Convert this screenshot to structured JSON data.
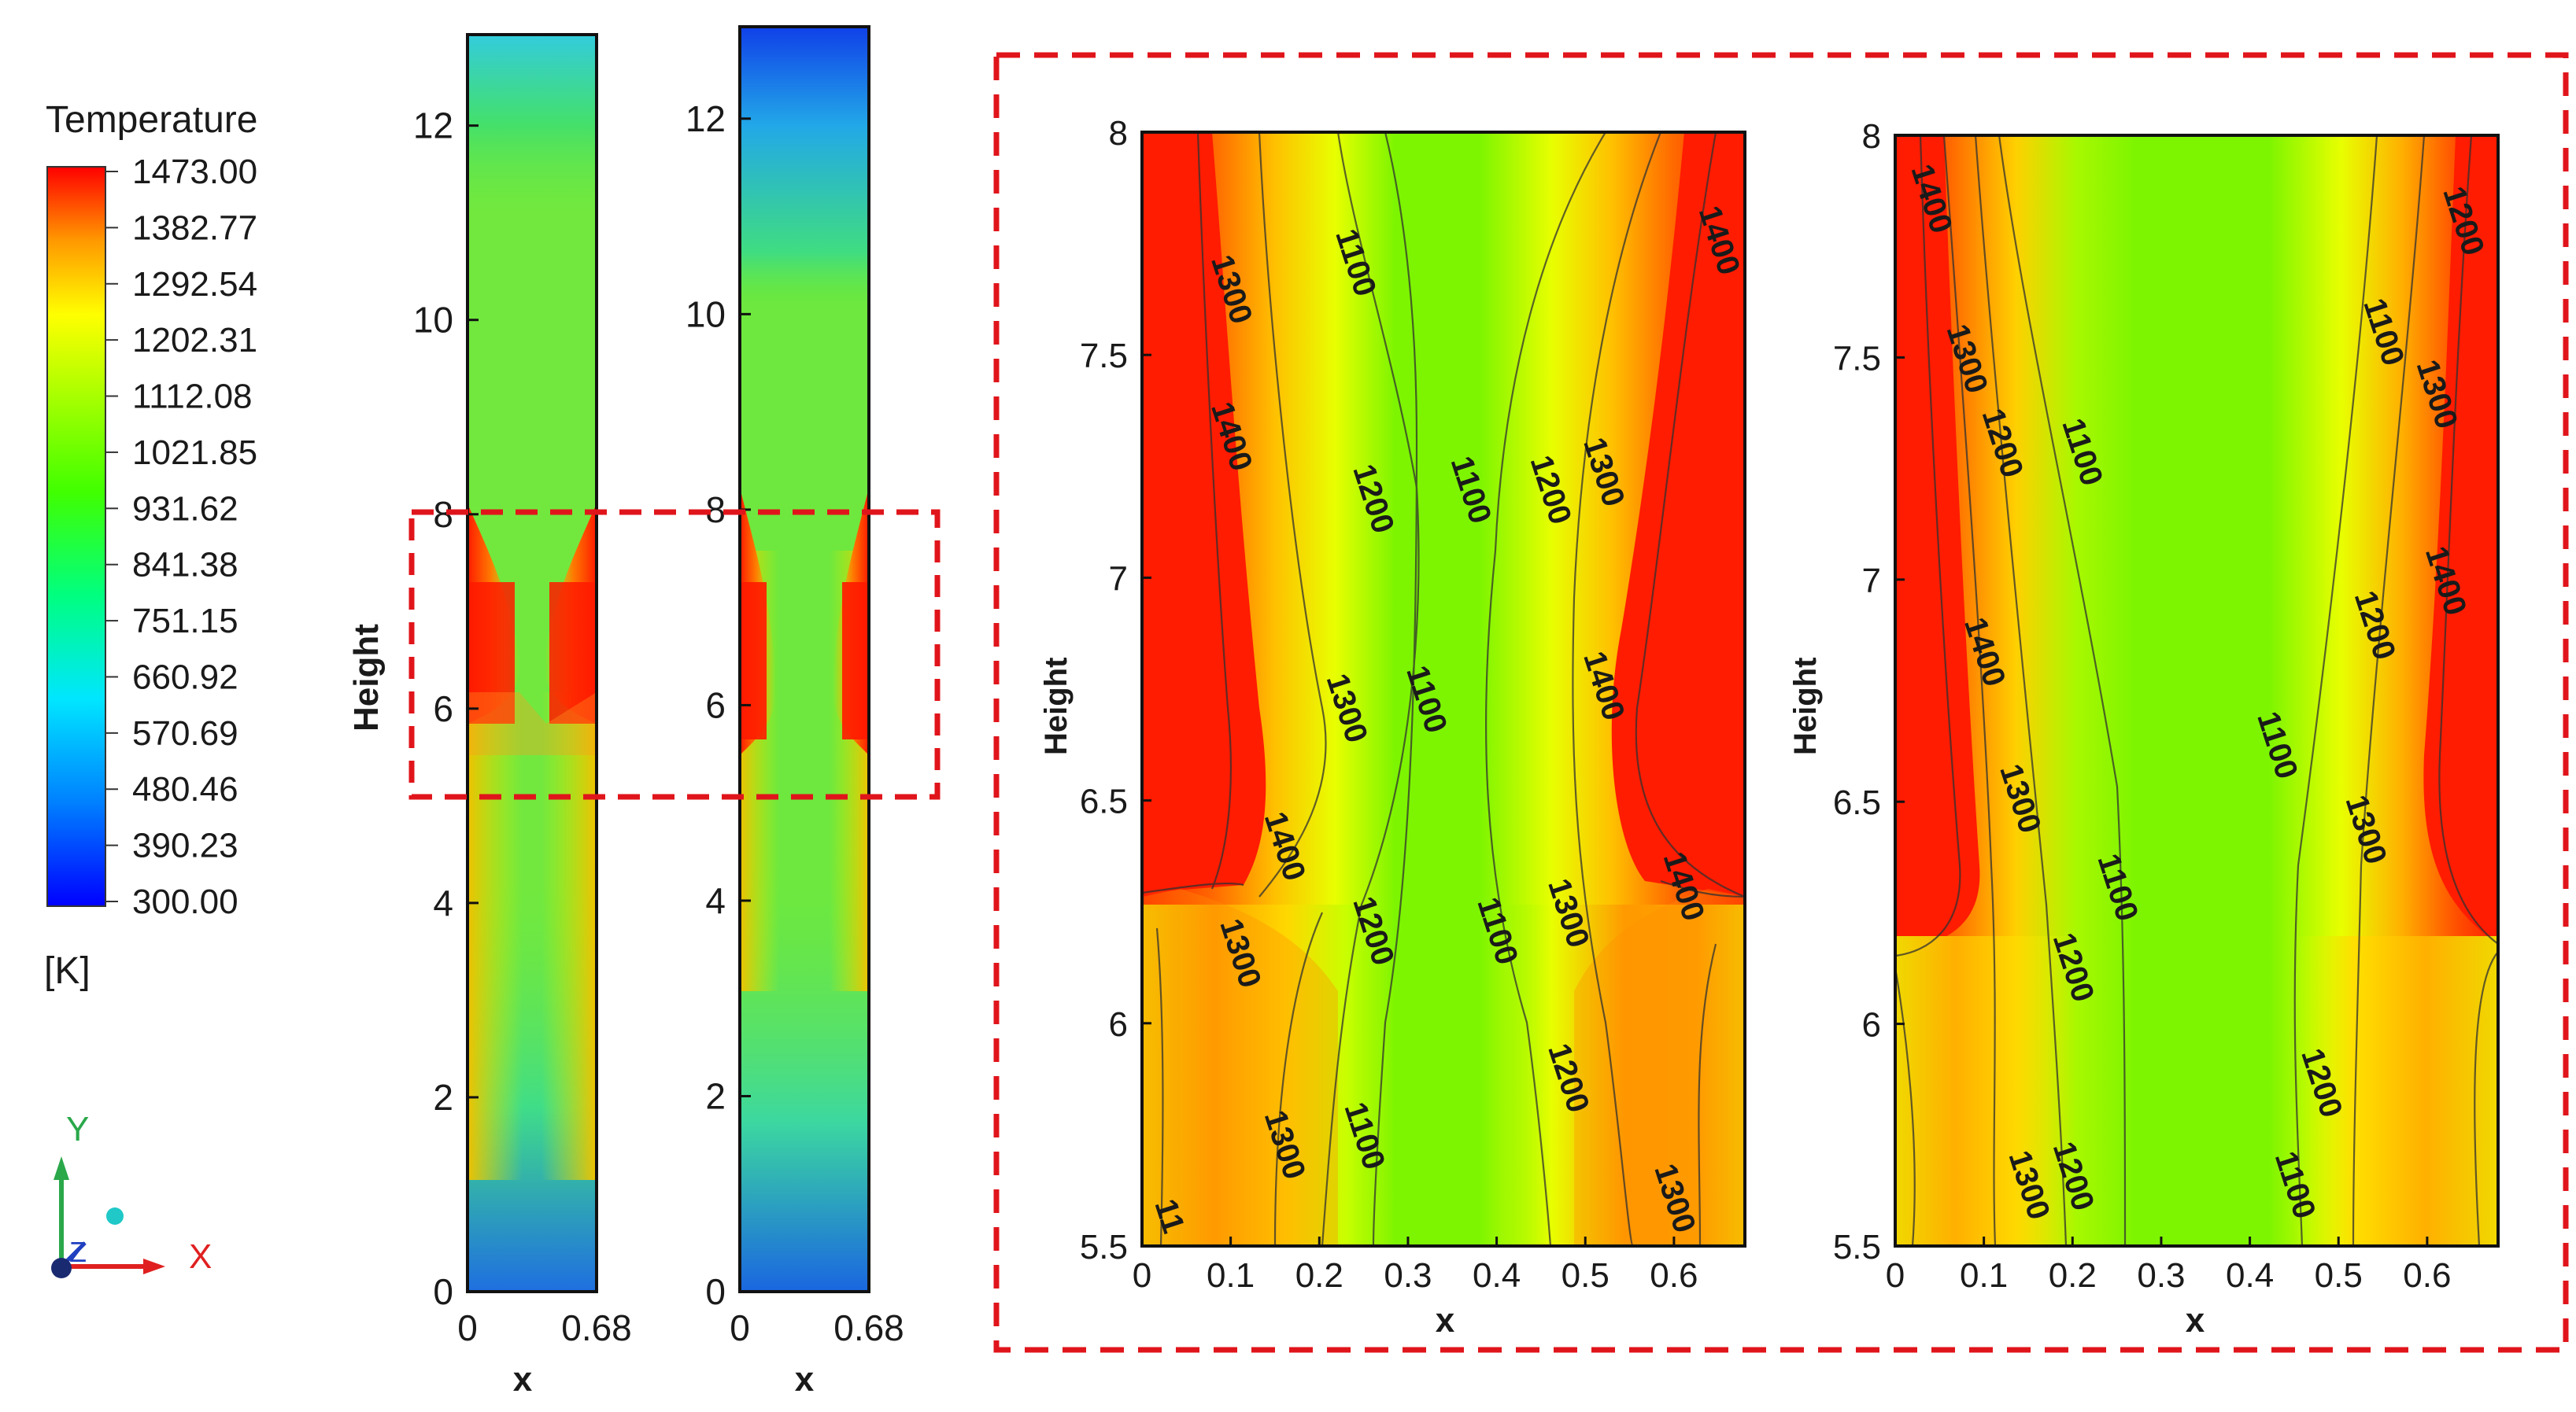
{
  "legend": {
    "title": "Temperature",
    "unit": "[K]",
    "min": 300.0,
    "max": 1473.0,
    "levels": [
      "1473.00",
      "1382.77",
      "1292.54",
      "1202.31",
      "1112.08",
      "1021.85",
      "931.62",
      "841.38",
      "751.15",
      "660.92",
      "570.69",
      "480.46",
      "390.23",
      "300.00"
    ],
    "colors": [
      "#0000ff",
      "#00bfff",
      "#00ffcc",
      "#00ff66",
      "#7cfc00",
      "#ffff00",
      "#ff9900",
      "#ff0000"
    ]
  },
  "triad": {
    "y": "Y",
    "z": "Z",
    "x": "X"
  },
  "chart_data": [
    {
      "type": "heatmap",
      "xlabel": "x",
      "ylabel": "Height",
      "xlim": [
        0,
        0.68
      ],
      "ylim": [
        0,
        13.6
      ],
      "xticks": [
        "0",
        "0.68"
      ],
      "yticks": [
        "0",
        "2",
        "4",
        "6",
        "8",
        "10",
        "12"
      ]
    },
    {
      "type": "heatmap",
      "xlabel": "x",
      "ylabel": "",
      "xlim": [
        0,
        0.68
      ],
      "ylim": [
        0,
        13.6
      ],
      "xticks": [
        "0",
        "0.68"
      ],
      "yticks": [
        "0",
        "2",
        "4",
        "6",
        "8",
        "10",
        "12"
      ]
    },
    {
      "type": "heatmap",
      "xlabel": "x",
      "ylabel": "Height",
      "xlim": [
        0,
        0.68
      ],
      "ylim": [
        5.5,
        8
      ],
      "xticks": [
        "0",
        "0.1",
        "0.2",
        "0.3",
        "0.4",
        "0.5",
        "0.6"
      ],
      "yticks": [
        "5.5",
        "6",
        "6.5",
        "7",
        "7.5",
        "8"
      ],
      "contour_labels": [
        {
          "text": "1300",
          "x": 0.09,
          "y": 7.64
        },
        {
          "text": "1100",
          "x": 0.23,
          "y": 7.7
        },
        {
          "text": "1400",
          "x": 0.64,
          "y": 7.75
        },
        {
          "text": "1400",
          "x": 0.09,
          "y": 7.31
        },
        {
          "text": "1200",
          "x": 0.25,
          "y": 7.17
        },
        {
          "text": "1100",
          "x": 0.36,
          "y": 7.19
        },
        {
          "text": "1200",
          "x": 0.45,
          "y": 7.19
        },
        {
          "text": "1300",
          "x": 0.51,
          "y": 7.23
        },
        {
          "text": "1300",
          "x": 0.22,
          "y": 6.7
        },
        {
          "text": "1100",
          "x": 0.31,
          "y": 6.72
        },
        {
          "text": "1400",
          "x": 0.51,
          "y": 6.75
        },
        {
          "text": "1400",
          "x": 0.15,
          "y": 6.39
        },
        {
          "text": "1400",
          "x": 0.6,
          "y": 6.3
        },
        {
          "text": "1300",
          "x": 0.1,
          "y": 6.15
        },
        {
          "text": "1200",
          "x": 0.25,
          "y": 6.2
        },
        {
          "text": "1100",
          "x": 0.39,
          "y": 6.2
        },
        {
          "text": "1300",
          "x": 0.47,
          "y": 6.24
        },
        {
          "text": "1200",
          "x": 0.47,
          "y": 5.87
        },
        {
          "text": "1300",
          "x": 0.15,
          "y": 5.72
        },
        {
          "text": "1100",
          "x": 0.24,
          "y": 5.74
        },
        {
          "text": "1300",
          "x": 0.59,
          "y": 5.6
        },
        {
          "text": "11",
          "x": 0.02,
          "y": 5.56
        }
      ]
    },
    {
      "type": "heatmap",
      "xlabel": "x",
      "ylabel": "Height",
      "xlim": [
        0,
        0.68
      ],
      "ylim": [
        5.5,
        8
      ],
      "xticks": [
        "0",
        "0.1",
        "0.2",
        "0.3",
        "0.4",
        "0.5",
        "0.6"
      ],
      "yticks": [
        "5.5",
        "6",
        "6.5",
        "7",
        "7.5",
        "8"
      ],
      "contour_labels": [
        {
          "text": "1400",
          "x": 0.03,
          "y": 7.85
        },
        {
          "text": "1200",
          "x": 0.63,
          "y": 7.8
        },
        {
          "text": "1300",
          "x": 0.07,
          "y": 7.49
        },
        {
          "text": "1100",
          "x": 0.54,
          "y": 7.55
        },
        {
          "text": "1200",
          "x": 0.11,
          "y": 7.3
        },
        {
          "text": "1100",
          "x": 0.2,
          "y": 7.28
        },
        {
          "text": "1300",
          "x": 0.6,
          "y": 7.41
        },
        {
          "text": "1400",
          "x": 0.61,
          "y": 6.99
        },
        {
          "text": "1400",
          "x": 0.09,
          "y": 6.83
        },
        {
          "text": "1200",
          "x": 0.53,
          "y": 6.89
        },
        {
          "text": "1100",
          "x": 0.42,
          "y": 6.62
        },
        {
          "text": "1300",
          "x": 0.13,
          "y": 6.5
        },
        {
          "text": "1300",
          "x": 0.52,
          "y": 6.43
        },
        {
          "text": "1100",
          "x": 0.24,
          "y": 6.3
        },
        {
          "text": "1200",
          "x": 0.19,
          "y": 6.12
        },
        {
          "text": "1200",
          "x": 0.47,
          "y": 5.86
        },
        {
          "text": "1100",
          "x": 0.44,
          "y": 5.63
        },
        {
          "text": "1300",
          "x": 0.14,
          "y": 5.63
        },
        {
          "text": "1200",
          "x": 0.19,
          "y": 5.65
        }
      ]
    }
  ]
}
